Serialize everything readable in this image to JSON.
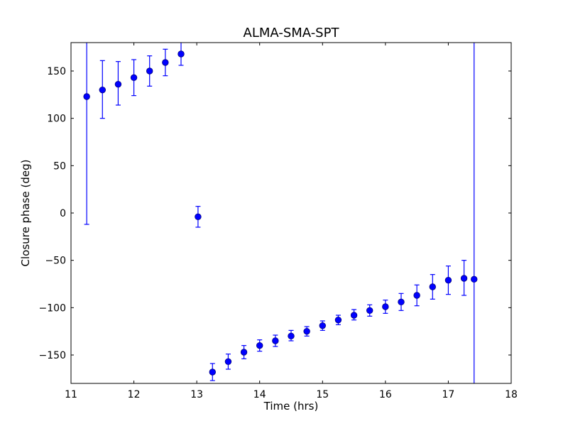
{
  "chart_data": {
    "type": "scatter",
    "title": "ALMA-SMA-SPT",
    "xlabel": "Time (hrs)",
    "ylabel": "Closure phase (deg)",
    "xlim": [
      11,
      18
    ],
    "ylim": [
      -180,
      180
    ],
    "xticks": [
      11,
      12,
      13,
      14,
      15,
      16,
      17,
      18
    ],
    "yticks": [
      -150,
      -100,
      -50,
      0,
      50,
      100,
      150
    ],
    "xtick_labels": [
      "11",
      "12",
      "13",
      "14",
      "15",
      "16",
      "17",
      "18"
    ],
    "ytick_labels": [
      "−150",
      "−100",
      "−50",
      "0",
      "50",
      "100",
      "150"
    ],
    "grid": false,
    "marker_color": "#0000ff",
    "marker_edge_color": "#000080",
    "errorbar_color": "#0000ff",
    "points": [
      {
        "x": 11.25,
        "y": 123,
        "lo": -12,
        "hi": 180
      },
      {
        "x": 11.5,
        "y": 130,
        "lo": 100,
        "hi": 161
      },
      {
        "x": 11.75,
        "y": 136,
        "lo": 114,
        "hi": 160
      },
      {
        "x": 12.0,
        "y": 143,
        "lo": 124,
        "hi": 162
      },
      {
        "x": 12.25,
        "y": 150,
        "lo": 134,
        "hi": 166
      },
      {
        "x": 12.5,
        "y": 159,
        "lo": 145,
        "hi": 173
      },
      {
        "x": 12.75,
        "y": 168,
        "lo": 156,
        "hi": 180
      },
      {
        "x": 13.02,
        "y": -4,
        "lo": -15,
        "hi": 7
      },
      {
        "x": 13.25,
        "y": -168,
        "lo": -177,
        "hi": -159
      },
      {
        "x": 13.5,
        "y": -157,
        "lo": -165,
        "hi": -149
      },
      {
        "x": 13.75,
        "y": -147,
        "lo": -154,
        "hi": -140
      },
      {
        "x": 14.0,
        "y": -140,
        "lo": -146,
        "hi": -134
      },
      {
        "x": 14.25,
        "y": -135,
        "lo": -141,
        "hi": -129
      },
      {
        "x": 14.5,
        "y": -130,
        "lo": -135,
        "hi": -124
      },
      {
        "x": 14.75,
        "y": -125,
        "lo": -130,
        "hi": -120
      },
      {
        "x": 15.0,
        "y": -119,
        "lo": -124,
        "hi": -114
      },
      {
        "x": 15.25,
        "y": -113,
        "lo": -118,
        "hi": -108
      },
      {
        "x": 15.5,
        "y": -108,
        "lo": -113,
        "hi": -102
      },
      {
        "x": 15.75,
        "y": -103,
        "lo": -109,
        "hi": -97
      },
      {
        "x": 16.0,
        "y": -99,
        "lo": -106,
        "hi": -92
      },
      {
        "x": 16.25,
        "y": -94,
        "lo": -103,
        "hi": -85
      },
      {
        "x": 16.5,
        "y": -87,
        "lo": -98,
        "hi": -76
      },
      {
        "x": 16.75,
        "y": -78,
        "lo": -91,
        "hi": -65
      },
      {
        "x": 17.0,
        "y": -71,
        "lo": -86,
        "hi": -56
      },
      {
        "x": 17.25,
        "y": -69,
        "lo": -87,
        "hi": -50
      },
      {
        "x": 17.41,
        "y": -70,
        "lo": -180,
        "hi": 180
      }
    ]
  }
}
